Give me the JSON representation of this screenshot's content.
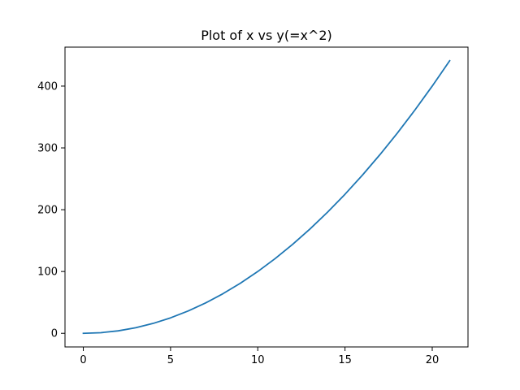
{
  "chart_data": {
    "type": "line",
    "title": "Plot of x vs y(=x^2)",
    "xlabel": "",
    "ylabel": "",
    "xlim": [
      -1.05,
      22.05
    ],
    "ylim": [
      -22.05,
      463.05
    ],
    "x_ticks": [
      0,
      5,
      10,
      15,
      20
    ],
    "y_ticks": [
      0,
      100,
      200,
      300,
      400
    ],
    "grid": false,
    "legend": "none",
    "series": [
      {
        "color": "#1f77b4",
        "x": [
          0,
          1,
          2,
          3,
          4,
          5,
          6,
          7,
          8,
          9,
          10,
          11,
          12,
          13,
          14,
          15,
          16,
          17,
          18,
          19,
          20,
          21
        ],
        "y": [
          0,
          1,
          4,
          9,
          16,
          25,
          36,
          49,
          64,
          81,
          100,
          121,
          144,
          169,
          196,
          225,
          256,
          289,
          324,
          361,
          400,
          441
        ]
      }
    ]
  }
}
